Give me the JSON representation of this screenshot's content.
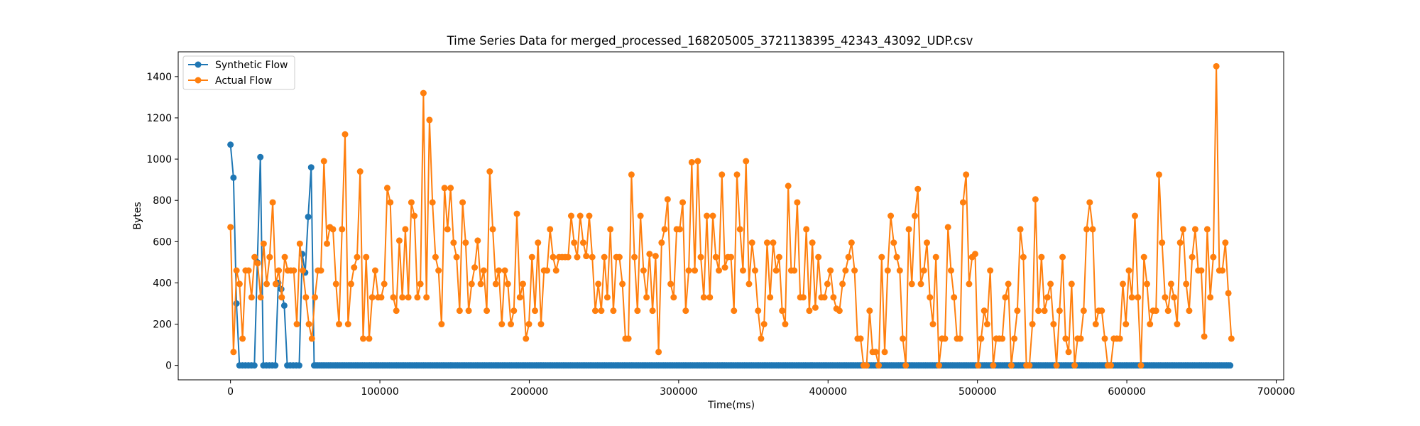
{
  "chart_data": {
    "type": "line",
    "title": "Time Series Data for merged_processed_168205005_3721138395_42343_43092_UDP.csv",
    "xlabel": "Time(ms)",
    "ylabel": "Bytes",
    "xlim": [
      -35000,
      705000
    ],
    "ylim": [
      -70,
      1520
    ],
    "xticks": [
      0,
      100000,
      200000,
      300000,
      400000,
      500000,
      600000,
      700000
    ],
    "yticks": [
      0,
      200,
      400,
      600,
      800,
      1000,
      1200,
      1400
    ],
    "grid": false,
    "legend_position": "top-left",
    "series": [
      {
        "name": "Synthetic Flow",
        "color": "#1f77b4",
        "marker": "circle",
        "sampling_interval_ms": 1200,
        "x": [
          0,
          2000,
          4000,
          6000,
          8000,
          10000,
          12000,
          14000,
          16000,
          18000,
          20000,
          22000,
          24000,
          26000,
          28000,
          30000,
          32000,
          34000,
          36000,
          38000,
          40000,
          42000,
          44000,
          46000,
          48000,
          50000,
          52000,
          54000,
          56000
        ],
        "values": [
          1070,
          910,
          300,
          0,
          0,
          0,
          0,
          0,
          0,
          500,
          1010,
          0,
          0,
          0,
          0,
          0,
          400,
          370,
          290,
          0,
          0,
          0,
          0,
          0,
          540,
          450,
          720,
          960,
          0
        ],
        "tail_start_ms": 56000,
        "tail_end_ms": 670000,
        "tail_value": 0
      },
      {
        "name": "Actual Flow",
        "color": "#ff7f0e",
        "marker": "circle",
        "x_start_ms": 0,
        "x_end_ms": 670000,
        "values": [
          670,
          65,
          460,
          395,
          130,
          460,
          460,
          330,
          525,
          495,
          330,
          590,
          395,
          525,
          790,
          395,
          460,
          330,
          525,
          460,
          460,
          460,
          200,
          590,
          460,
          330,
          200,
          130,
          330,
          460,
          460,
          990,
          590,
          670,
          660,
          395,
          200,
          660,
          1120,
          200,
          395,
          475,
          525,
          940,
          130,
          525,
          130,
          330,
          460,
          330,
          330,
          395,
          860,
          790,
          330,
          265,
          605,
          330,
          660,
          330,
          790,
          725,
          330,
          395,
          1320,
          330,
          1190,
          790,
          525,
          460,
          200,
          860,
          660,
          860,
          595,
          525,
          265,
          790,
          595,
          265,
          395,
          475,
          605,
          395,
          460,
          265,
          940,
          660,
          395,
          460,
          200,
          460,
          395,
          200,
          265,
          735,
          330,
          395,
          130,
          200,
          525,
          265,
          595,
          200,
          460,
          460,
          660,
          525,
          460,
          525,
          525,
          525,
          525,
          725,
          595,
          525,
          725,
          595,
          530,
          725,
          525,
          265,
          395,
          265,
          525,
          330,
          660,
          265,
          525,
          525,
          395,
          130,
          130,
          925,
          525,
          265,
          725,
          460,
          330,
          540,
          265,
          530,
          65,
          595,
          660,
          805,
          395,
          330,
          660,
          660,
          790,
          265,
          460,
          985,
          460,
          990,
          525,
          330,
          725,
          330,
          725,
          525,
          460,
          925,
          475,
          525,
          525,
          265,
          925,
          660,
          460,
          990,
          395,
          595,
          460,
          265,
          130,
          200,
          595,
          330,
          595,
          460,
          525,
          265,
          200,
          870,
          460,
          460,
          790,
          330,
          330,
          660,
          265,
          595,
          280,
          525,
          330,
          330,
          395,
          460,
          330,
          275,
          265,
          395,
          460,
          525,
          595,
          460,
          130,
          130,
          0,
          0,
          265,
          65,
          65,
          0,
          525,
          65,
          460,
          725,
          595,
          525,
          460,
          130,
          0,
          660,
          395,
          725,
          855,
          395,
          460,
          595,
          330,
          200,
          525,
          0,
          130,
          130,
          670,
          460,
          330,
          130,
          130,
          790,
          925,
          395,
          525,
          540,
          0,
          130,
          265,
          200,
          460,
          0,
          130,
          130,
          130,
          330,
          395,
          0,
          130,
          265,
          660,
          525,
          0,
          0,
          200,
          805,
          265,
          525,
          265,
          330,
          395,
          200,
          0,
          265,
          525,
          130,
          65,
          395,
          0,
          130,
          130,
          265,
          660,
          790,
          660,
          200,
          265,
          265,
          130,
          0,
          0,
          130,
          130,
          130,
          395,
          200,
          460,
          330,
          725,
          330,
          0,
          525,
          395,
          200,
          265,
          265,
          925,
          595,
          330,
          265,
          395,
          330,
          200,
          595,
          660,
          395,
          265,
          525,
          660,
          460,
          460,
          140,
          660,
          330,
          525,
          1450,
          460,
          460,
          595,
          350,
          130
        ]
      }
    ]
  }
}
